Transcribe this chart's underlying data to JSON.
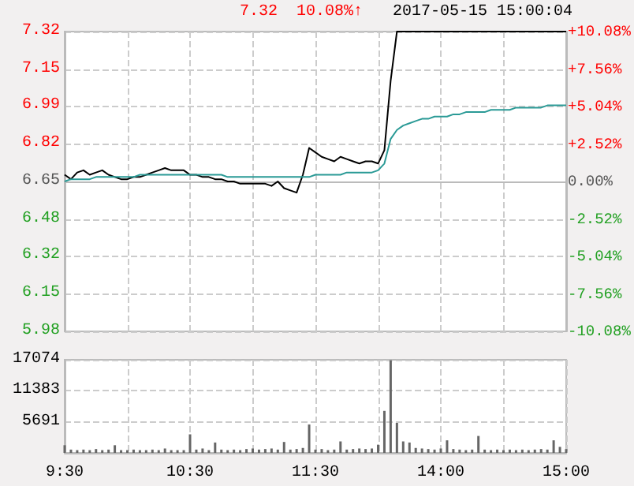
{
  "chart_data": [
    {
      "type": "line",
      "title": "2017-05-15 15:00:04",
      "annotations": [
        "7.32",
        "10.08%↑"
      ],
      "categories": [
        null,
        null,
        null,
        null,
        null,
        null,
        null,
        null,
        null,
        null,
        null,
        null,
        null,
        null,
        null,
        null,
        null,
        null,
        null,
        null,
        null,
        null,
        null,
        null,
        null,
        null,
        null,
        null,
        null,
        null,
        null,
        null,
        null,
        null,
        null,
        null,
        null,
        null,
        null,
        null,
        null,
        null,
        null,
        null,
        null,
        null,
        null,
        null,
        null,
        null,
        null,
        null,
        null,
        null,
        null,
        null,
        null,
        null,
        null,
        null,
        null,
        null,
        null,
        null,
        null,
        null,
        null,
        null,
        null,
        null,
        null,
        null,
        null,
        null,
        null,
        null,
        null,
        null,
        null,
        null,
        null
      ],
      "ylim": [
        5.98,
        7.32
      ],
      "yticks": [
        5.98,
        6.15,
        6.32,
        6.48,
        6.65,
        6.82,
        6.99,
        7.15,
        7.32
      ],
      "y2lim": [
        -10.08,
        10.08
      ],
      "y2ticks": [
        {
          "value": -10.08,
          "label": "-10.08%"
        },
        {
          "value": -7.56,
          "label": "-7.56%"
        },
        {
          "value": -5.04,
          "label": "-5.04%"
        },
        {
          "value": -2.52,
          "label": "-2.52%"
        },
        {
          "value": 0,
          "label": "0.00%"
        },
        {
          "value": 2.52,
          "label": "+2.52%"
        },
        {
          "value": 5.04,
          "label": "+5.04%"
        },
        {
          "value": 7.56,
          "label": "+7.56%"
        },
        {
          "value": 10.08,
          "label": "+10.08%"
        }
      ],
      "grid": true,
      "tick_labels": "y",
      "line_style": "solid",
      "series": [
        {
          "color": "#000000",
          "values": [
            6.68,
            6.66,
            6.69,
            6.7,
            6.68,
            6.69,
            6.7,
            6.68,
            6.67,
            6.66,
            6.66,
            6.67,
            6.67,
            6.68,
            6.69,
            6.7,
            6.71,
            6.7,
            6.7,
            6.7,
            6.68,
            6.68,
            6.67,
            6.67,
            6.66,
            6.66,
            6.65,
            6.65,
            6.64,
            6.64,
            6.64,
            6.64,
            6.64,
            6.63,
            6.65,
            6.62,
            6.61,
            6.6,
            6.68,
            6.8,
            6.78,
            6.76,
            6.75,
            6.74,
            6.76,
            6.75,
            6.74,
            6.73,
            6.74,
            6.74,
            6.73,
            6.79,
            7.1,
            7.32,
            7.32,
            7.32,
            7.32,
            7.32,
            7.32,
            7.32,
            7.32,
            7.32,
            7.32,
            7.32,
            7.32,
            7.32,
            7.32,
            7.32,
            7.32,
            7.32,
            7.32,
            7.32,
            7.32,
            7.32,
            7.32,
            7.32,
            7.32,
            7.32,
            7.32,
            7.32,
            7.32
          ]
        },
        {
          "color": "#2a9a96",
          "values": [
            6.65,
            6.66,
            6.66,
            6.66,
            6.66,
            6.67,
            6.67,
            6.67,
            6.67,
            6.67,
            6.67,
            6.67,
            6.68,
            6.68,
            6.68,
            6.68,
            6.68,
            6.68,
            6.68,
            6.68,
            6.68,
            6.68,
            6.68,
            6.68,
            6.68,
            6.68,
            6.67,
            6.67,
            6.67,
            6.67,
            6.67,
            6.67,
            6.67,
            6.67,
            6.67,
            6.67,
            6.67,
            6.67,
            6.67,
            6.67,
            6.68,
            6.68,
            6.68,
            6.68,
            6.68,
            6.69,
            6.69,
            6.69,
            6.69,
            6.69,
            6.7,
            6.73,
            6.84,
            6.88,
            6.9,
            6.91,
            6.92,
            6.93,
            6.93,
            6.94,
            6.94,
            6.94,
            6.95,
            6.95,
            6.96,
            6.96,
            6.96,
            6.96,
            6.97,
            6.97,
            6.97,
            6.97,
            6.98,
            6.98,
            6.98,
            6.98,
            6.98,
            6.99,
            6.99,
            6.99,
            6.99
          ]
        }
      ]
    },
    {
      "type": "bar",
      "categories": [
        "9:30",
        null,
        null,
        null,
        null,
        null,
        null,
        null,
        null,
        null,
        null,
        null,
        null,
        null,
        null,
        null,
        null,
        null,
        null,
        null,
        "10:30",
        null,
        null,
        null,
        null,
        null,
        null,
        null,
        null,
        null,
        null,
        null,
        null,
        null,
        null,
        null,
        null,
        null,
        null,
        null,
        "11:30",
        null,
        null,
        null,
        null,
        null,
        null,
        null,
        null,
        null,
        null,
        null,
        null,
        null,
        null,
        null,
        null,
        null,
        null,
        null,
        "14:00",
        null,
        null,
        null,
        null,
        null,
        null,
        null,
        null,
        null,
        null,
        null,
        null,
        null,
        null,
        null,
        null,
        null,
        null,
        null,
        "15:00"
      ],
      "ylim": [
        0,
        17074
      ],
      "yticks": [
        5691,
        11383,
        17074
      ],
      "grid": true,
      "series": [
        {
          "color": "#666666",
          "values": [
            1400,
            600,
            500,
            600,
            500,
            700,
            500,
            600,
            1400,
            500,
            500,
            600,
            500,
            500,
            600,
            500,
            800,
            500,
            500,
            500,
            3400,
            600,
            800,
            500,
            1900,
            600,
            500,
            600,
            500,
            700,
            800,
            600,
            700,
            800,
            600,
            2000,
            600,
            700,
            900,
            5200,
            600,
            700,
            500,
            600,
            2100,
            600,
            700,
            800,
            700,
            800,
            1500,
            7700,
            17000,
            5500,
            2100,
            1900,
            900,
            800,
            700,
            600,
            800,
            2300,
            700,
            600,
            500,
            600,
            3100,
            600,
            500,
            600,
            500,
            600,
            500,
            600,
            500,
            600,
            700,
            600,
            2300,
            1100,
            700
          ]
        }
      ]
    }
  ]
}
